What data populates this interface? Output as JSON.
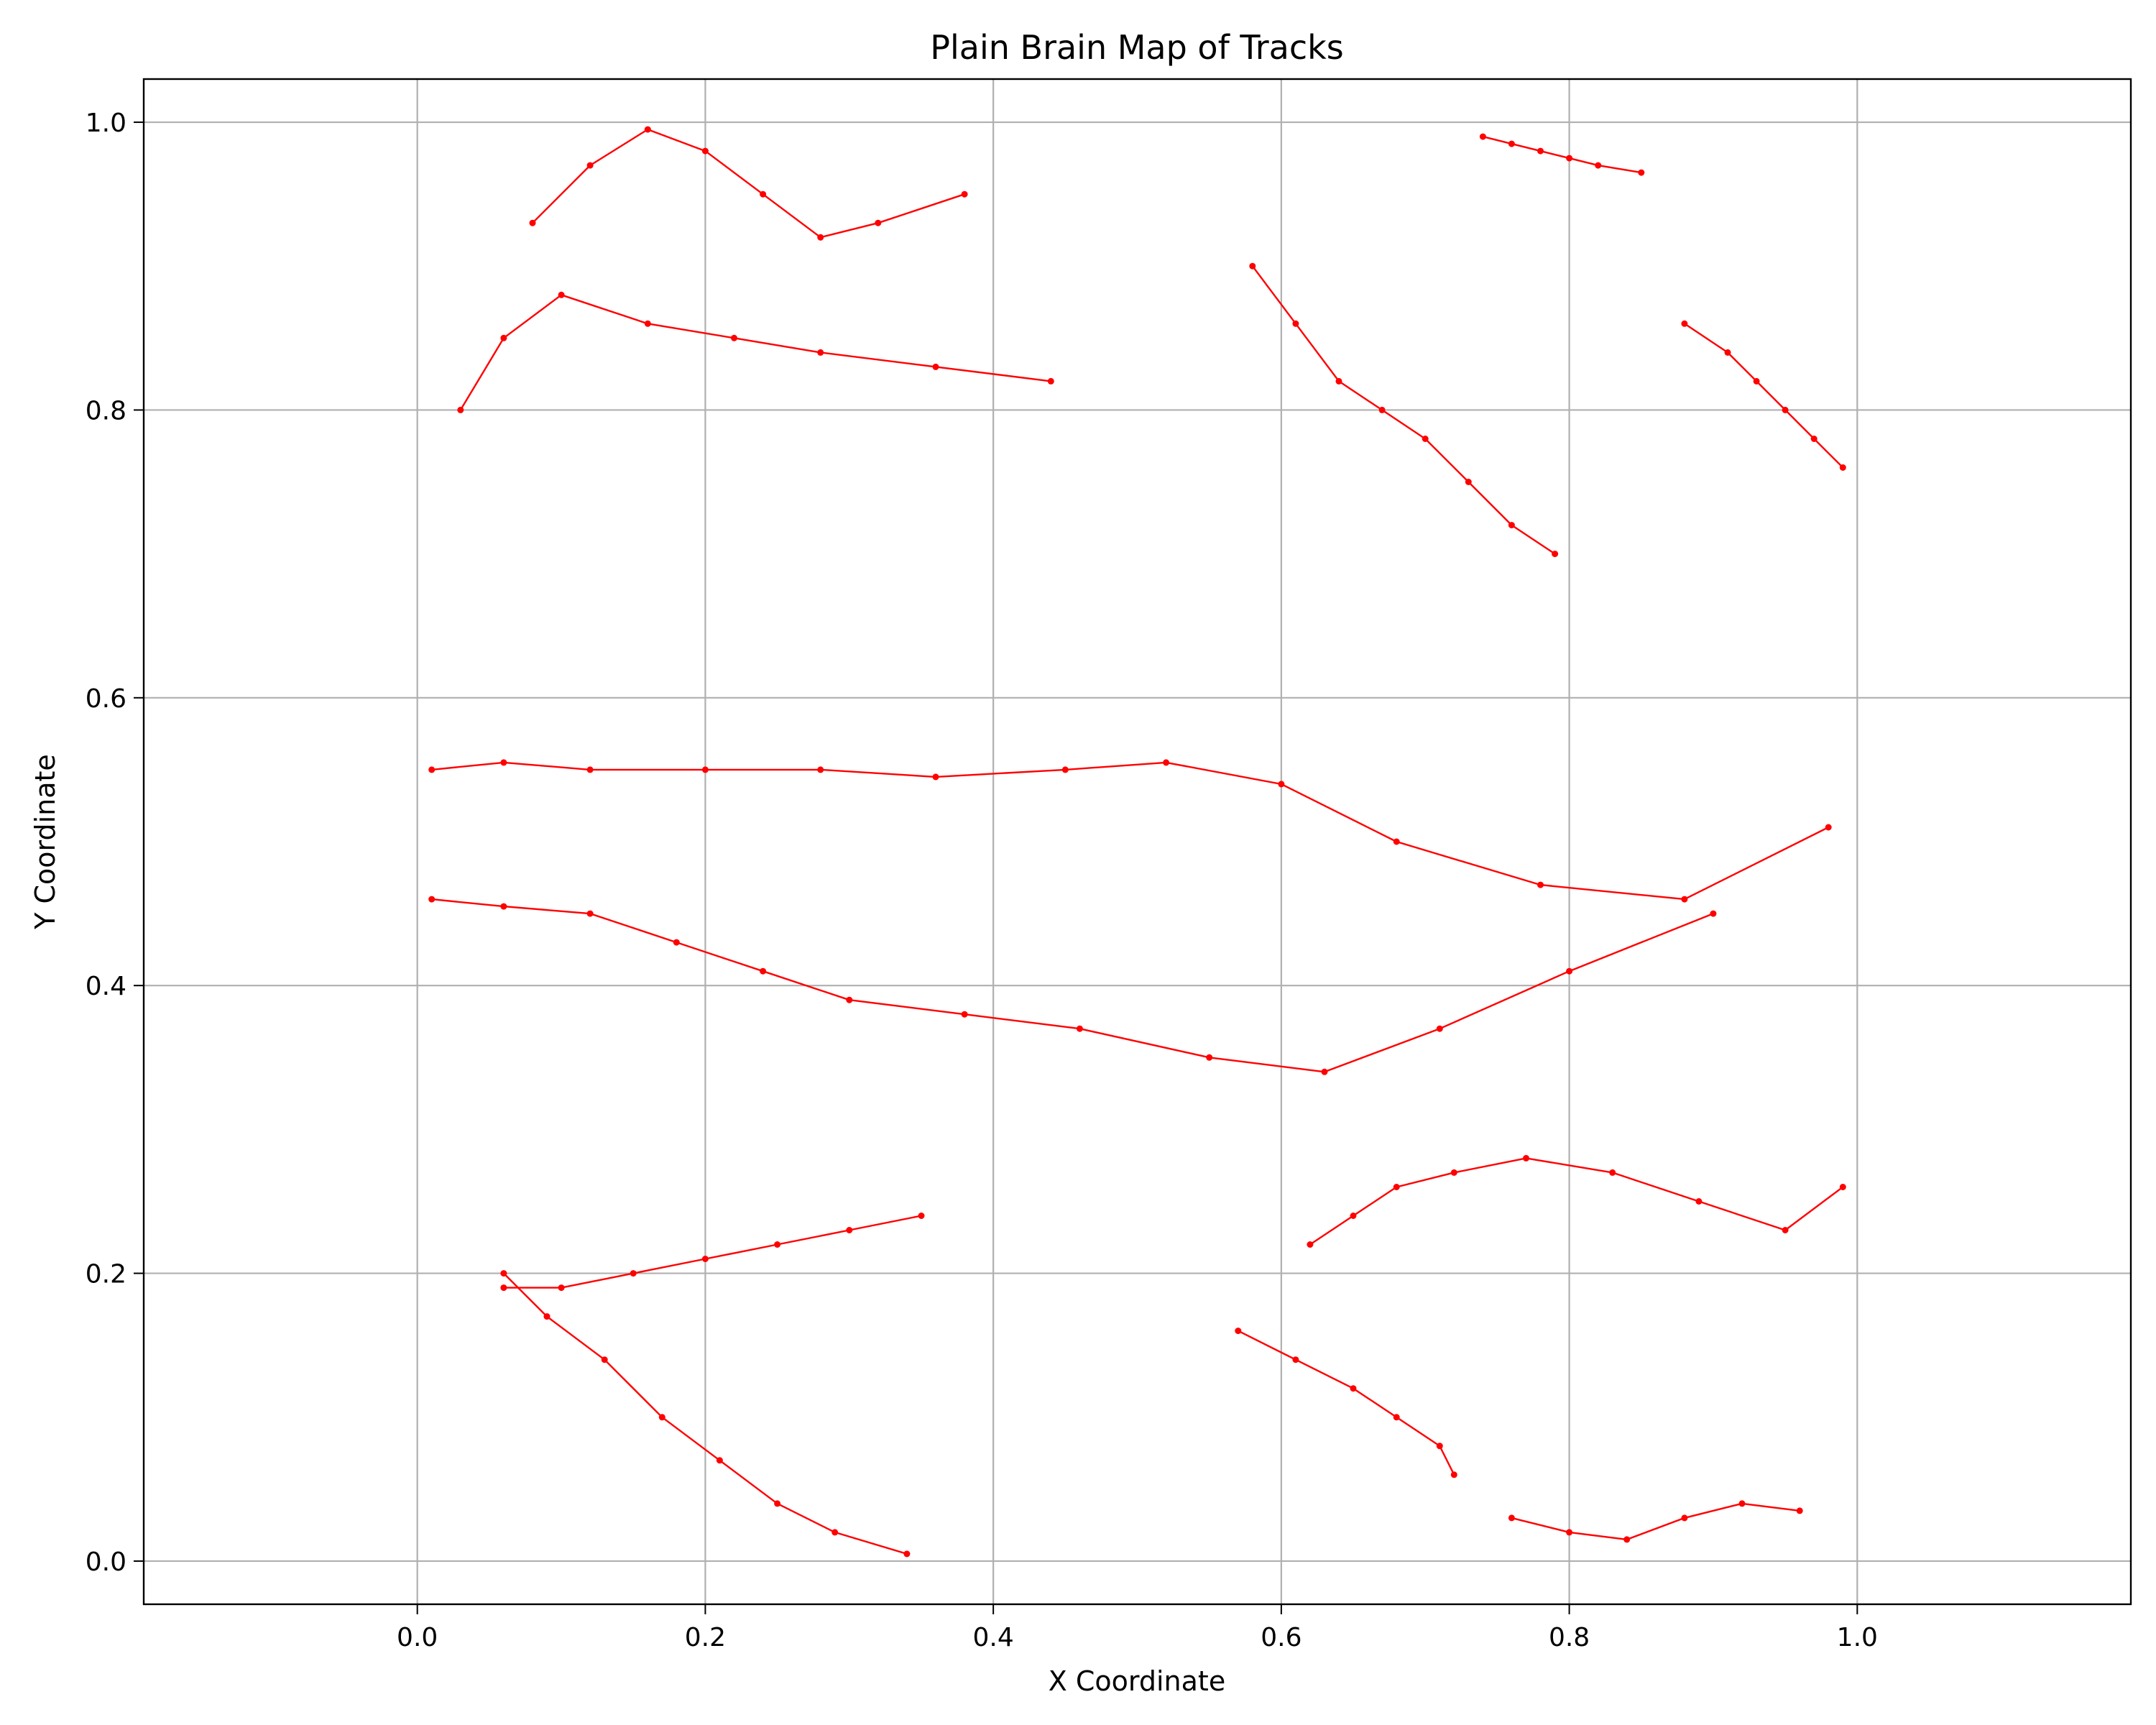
{
  "chart_data": {
    "type": "line",
    "title": "Plain Brain Map of Tracks",
    "xlabel": "X Coordinate",
    "ylabel": "Y Coordinate",
    "xlim": [
      -0.19,
      1.19
    ],
    "ylim": [
      -0.03,
      1.03
    ],
    "x_ticks": [
      0.0,
      0.2,
      0.4,
      0.6,
      0.8,
      1.0
    ],
    "y_ticks": [
      0.0,
      0.2,
      0.4,
      0.6,
      0.8,
      1.0
    ],
    "x_tick_labels": [
      "0.0",
      "0.2",
      "0.4",
      "0.6",
      "0.8",
      "1.0"
    ],
    "y_tick_labels": [
      "0.0",
      "0.2",
      "0.4",
      "0.6",
      "0.8",
      "1.0"
    ],
    "grid": true,
    "legend": "none",
    "series_color": "#ff0000",
    "marker": "small filled circle",
    "series": [
      {
        "x": [
          0.01,
          0.06,
          0.12,
          0.2,
          0.28,
          0.36,
          0.45,
          0.52,
          0.6,
          0.68,
          0.78,
          0.88,
          0.98
        ],
        "y": [
          0.55,
          0.555,
          0.55,
          0.55,
          0.55,
          0.545,
          0.55,
          0.555,
          0.54,
          0.5,
          0.47,
          0.46,
          0.51
        ]
      },
      {
        "x": [
          0.01,
          0.06,
          0.12,
          0.18,
          0.24,
          0.3,
          0.38,
          0.46,
          0.55,
          0.63,
          0.71,
          0.8,
          0.9
        ],
        "y": [
          0.46,
          0.455,
          0.45,
          0.43,
          0.41,
          0.39,
          0.38,
          0.37,
          0.35,
          0.34,
          0.37,
          0.41,
          0.45
        ]
      },
      {
        "x": [
          0.03,
          0.06,
          0.1,
          0.16,
          0.22,
          0.28,
          0.36,
          0.44
        ],
        "y": [
          0.8,
          0.85,
          0.88,
          0.86,
          0.85,
          0.84,
          0.83,
          0.82
        ]
      },
      {
        "x": [
          0.06,
          0.09,
          0.13,
          0.17,
          0.21,
          0.25,
          0.29,
          0.34
        ],
        "y": [
          0.2,
          0.17,
          0.14,
          0.1,
          0.07,
          0.04,
          0.02,
          0.005
        ]
      },
      {
        "x": [
          0.06,
          0.1,
          0.15,
          0.2,
          0.25,
          0.3,
          0.35
        ],
        "y": [
          0.19,
          0.19,
          0.2,
          0.21,
          0.22,
          0.23,
          0.24
        ]
      },
      {
        "x": [
          0.08,
          0.12,
          0.16,
          0.2,
          0.24,
          0.28,
          0.32,
          0.38
        ],
        "y": [
          0.93,
          0.97,
          0.995,
          0.98,
          0.95,
          0.92,
          0.93,
          0.95
        ]
      },
      {
        "x": [
          0.58,
          0.61,
          0.64,
          0.67,
          0.7,
          0.73,
          0.76,
          0.79
        ],
        "y": [
          0.9,
          0.86,
          0.82,
          0.8,
          0.78,
          0.75,
          0.72,
          0.7
        ]
      },
      {
        "x": [
          0.57,
          0.61,
          0.65,
          0.68,
          0.71,
          0.72
        ],
        "y": [
          0.16,
          0.14,
          0.12,
          0.1,
          0.08,
          0.06
        ]
      },
      {
        "x": [
          0.62,
          0.65,
          0.68,
          0.72,
          0.77,
          0.83,
          0.89,
          0.95,
          0.99
        ],
        "y": [
          0.22,
          0.24,
          0.26,
          0.27,
          0.28,
          0.27,
          0.25,
          0.23,
          0.26
        ]
      },
      {
        "x": [
          0.74,
          0.76,
          0.78,
          0.8,
          0.82,
          0.85
        ],
        "y": [
          0.99,
          0.985,
          0.98,
          0.975,
          0.97,
          0.965
        ]
      },
      {
        "x": [
          0.88,
          0.91,
          0.93,
          0.95,
          0.97,
          0.99
        ],
        "y": [
          0.86,
          0.84,
          0.82,
          0.8,
          0.78,
          0.76
        ]
      },
      {
        "x": [
          0.76,
          0.8,
          0.84,
          0.88,
          0.92,
          0.96
        ],
        "y": [
          0.03,
          0.02,
          0.015,
          0.03,
          0.04,
          0.035
        ]
      }
    ]
  }
}
